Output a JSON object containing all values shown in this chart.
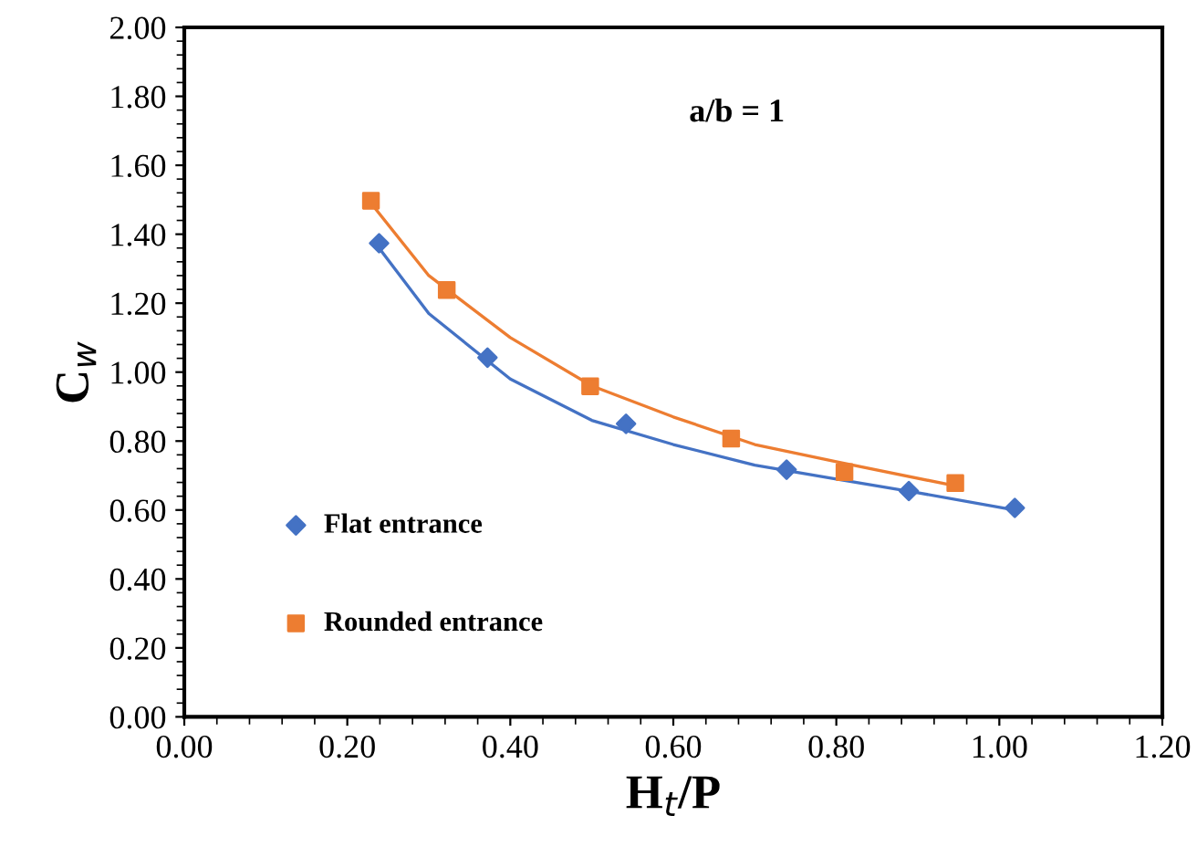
{
  "chart_data": {
    "type": "scatter",
    "xlabel": "H$_{t}$/P",
    "ylabel": "C$_{w}$",
    "annotations": [
      "a/b = 1"
    ],
    "xlim": [
      0,
      1.2
    ],
    "xticks": [
      {
        "value": 0,
        "label": "0.00"
      },
      {
        "value": 0.2,
        "label": "0.20"
      },
      {
        "value": 0.4,
        "label": "0.40"
      },
      {
        "value": 0.6,
        "label": "0.60"
      },
      {
        "value": 0.8,
        "label": "0.80"
      },
      {
        "value": 1.0,
        "label": "1.00"
      },
      {
        "value": 1.2,
        "label": "1.20"
      }
    ],
    "ylim": [
      0,
      2
    ],
    "yticks": [
      {
        "value": 0,
        "label": "0.00"
      },
      {
        "value": 0.2,
        "label": "0.20"
      },
      {
        "value": 0.4,
        "label": "0.40"
      },
      {
        "value": 0.6,
        "label": "0.60"
      },
      {
        "value": 0.8,
        "label": "0.80"
      },
      {
        "value": 1.0,
        "label": "1.00"
      },
      {
        "value": 1.2,
        "label": "1.20"
      },
      {
        "value": 1.4,
        "label": "1.40"
      },
      {
        "value": 1.6,
        "label": "1.60"
      },
      {
        "value": 1.8,
        "label": "1.80"
      },
      {
        "value": 2.0,
        "label": "2.00"
      }
    ],
    "grid": false,
    "legend": "bottom left",
    "series": [
      {
        "name": "Flat entrance",
        "color": "#4472c4",
        "marker": "diamond",
        "x": [
          0.239,
          0.372,
          0.542,
          0.739,
          0.889,
          1.019
        ],
        "values": [
          1.374,
          1.042,
          0.85,
          0.717,
          0.655,
          0.606
        ]
      },
      {
        "name": "Rounded entrance",
        "color": "#ed7d31",
        "marker": "square",
        "x": [
          0.229,
          0.322,
          0.498,
          0.671,
          0.81,
          0.946
        ],
        "values": [
          1.497,
          1.238,
          0.959,
          0.807,
          0.71,
          0.678
        ]
      },
      {
        "type": "line",
        "color": "#4472c4",
        "marker": "none",
        "x": [
          0.239,
          0.3,
          0.4,
          0.5,
          0.6,
          0.7,
          0.8,
          0.9,
          1.019
        ],
        "values": [
          1.36,
          1.17,
          0.98,
          0.86,
          0.79,
          0.73,
          0.69,
          0.65,
          0.6
        ]
      },
      {
        "type": "line",
        "color": "#ed7d31",
        "marker": "none",
        "x": [
          0.229,
          0.3,
          0.4,
          0.5,
          0.6,
          0.7,
          0.8,
          0.946
        ],
        "values": [
          1.49,
          1.28,
          1.1,
          0.96,
          0.87,
          0.79,
          0.74,
          0.67
        ]
      }
    ]
  }
}
